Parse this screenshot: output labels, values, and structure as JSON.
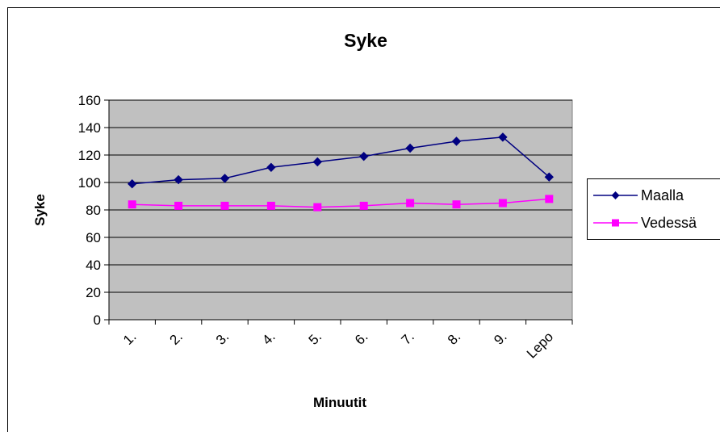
{
  "chart_data": {
    "type": "line",
    "title": "Syke",
    "xlabel": "Minuutit",
    "ylabel": "Syke",
    "categories": [
      "1.",
      "2.",
      "3.",
      "4.",
      "5.",
      "6.",
      "7.",
      "8.",
      "9.",
      "Lepo"
    ],
    "ylim": [
      0,
      160
    ],
    "yticks": [
      0,
      20,
      40,
      60,
      80,
      100,
      120,
      140,
      160
    ],
    "grid": true,
    "legend_position": "right",
    "series": [
      {
        "name": "Maalla",
        "color": "#000080",
        "marker": "diamond",
        "values": [
          99,
          102,
          103,
          111,
          115,
          119,
          125,
          130,
          133,
          104
        ]
      },
      {
        "name": "Vedessä",
        "color": "#FF00FF",
        "marker": "square",
        "values": [
          84,
          83,
          83,
          83,
          82,
          83,
          85,
          84,
          85,
          88
        ]
      }
    ],
    "plot_background": "#C0C0C0"
  }
}
